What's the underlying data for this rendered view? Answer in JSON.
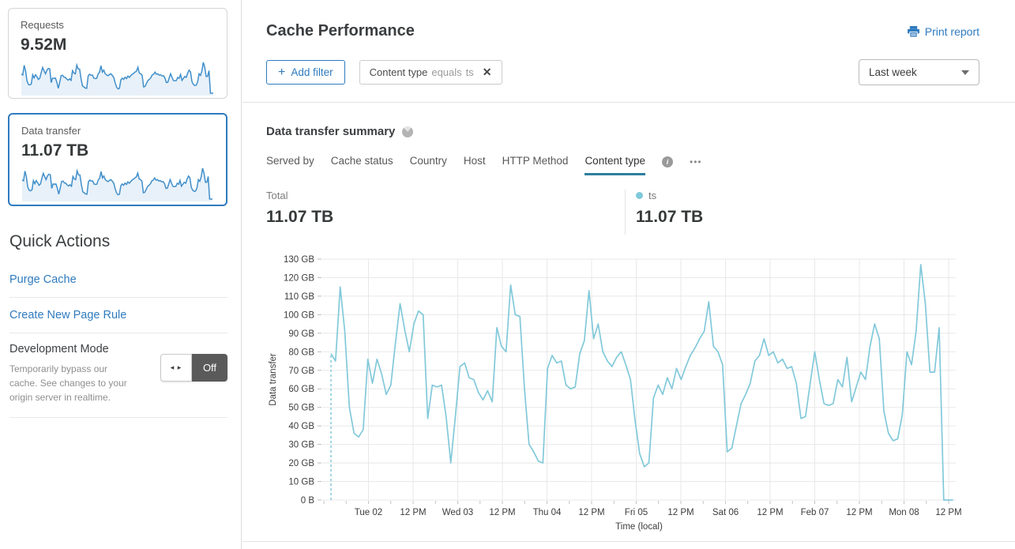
{
  "header": {
    "title": "Cache Performance",
    "print_report": "Print report"
  },
  "filters": {
    "add_filter": "Add filter",
    "plus_icon": "+",
    "chip": {
      "field": "Content type",
      "operator": "equals",
      "value": "ts"
    },
    "time_range": "Last week"
  },
  "sidebar": {
    "requests_card": {
      "label": "Requests",
      "value": "9.52M"
    },
    "data_transfer_card": {
      "label": "Data transfer",
      "value": "11.07 TB"
    },
    "quick_actions_title": "Quick Actions",
    "links": [
      {
        "label": "Purge Cache"
      },
      {
        "label": "Create New Page Rule"
      }
    ],
    "development_mode": {
      "title": "Development Mode",
      "description": "Temporarily bypass our cache. See changes to your origin server in realtime.",
      "toggle_label": "Off"
    }
  },
  "summary": {
    "title": "Data transfer summary",
    "tabs": [
      {
        "label": "Served by"
      },
      {
        "label": "Cache status"
      },
      {
        "label": "Country"
      },
      {
        "label": "Host"
      },
      {
        "label": "HTTP Method"
      },
      {
        "label": "Content type",
        "active": true
      }
    ],
    "total_label": "Total",
    "total_value": "11.07 TB",
    "legend": {
      "name": "ts",
      "value": "11.07 TB"
    }
  },
  "icons": {
    "more": "•••",
    "info": "i",
    "close": "✕",
    "toggle_arrows": "◂ ▸"
  },
  "colors": {
    "accent_blue": "#2f7bbf",
    "chart_line": "#82c9da",
    "legend_dot": "#7fc9db",
    "tab_underline": "#2d7f9d",
    "sparkline": "#418fca",
    "sparkline_fill": "#e8f1f9",
    "grid": "#e8e8e8"
  },
  "chart_data": {
    "type": "line",
    "title": "Data transfer summary",
    "xlabel": "Time (local)",
    "ylabel": "Data transfer",
    "unit": "GB",
    "ylim": [
      0,
      130
    ],
    "grid": true,
    "leading_dashed_drop": true,
    "x_ticks": [
      "Tue 02",
      "12 PM",
      "Wed 03",
      "12 PM",
      "Thu 04",
      "12 PM",
      "Fri 05",
      "12 PM",
      "Sat 06",
      "12 PM",
      "Feb 07",
      "12 PM",
      "Mon 08",
      "12 PM"
    ],
    "y_ticks": [
      "0 B",
      "10 GB",
      "20 GB",
      "30 GB",
      "40 GB",
      "50 GB",
      "60 GB",
      "70 GB",
      "80 GB",
      "90 GB",
      "100 GB",
      "110 GB",
      "120 GB",
      "130 GB"
    ],
    "series": [
      {
        "name": "ts",
        "total": "11.07 TB",
        "color": "#82c9da",
        "values": [
          79,
          75,
          115,
          91,
          50,
          36,
          34,
          38,
          76,
          63,
          76,
          68,
          57,
          62,
          85,
          106,
          92,
          80,
          95,
          102,
          100,
          44,
          62,
          61,
          62,
          45,
          20,
          45,
          72,
          74,
          66,
          65,
          58,
          54,
          59,
          53,
          93,
          83,
          80,
          116,
          100,
          99,
          60,
          30,
          26,
          21,
          20,
          71,
          78,
          74,
          75,
          62,
          60,
          61,
          79,
          86,
          113,
          87,
          95,
          80,
          75,
          72,
          77,
          80,
          73,
          65,
          43,
          25,
          18,
          20,
          55,
          62,
          57,
          66,
          60,
          71,
          65,
          72,
          78,
          82,
          87,
          91,
          107,
          83,
          80,
          73,
          26,
          28,
          40,
          52,
          57,
          63,
          75,
          78,
          87,
          78,
          80,
          74,
          76,
          71,
          72,
          63,
          44,
          45,
          63,
          80,
          65,
          52,
          51,
          52,
          65,
          61,
          77,
          53,
          61,
          69,
          65,
          83,
          95,
          87,
          48,
          36,
          32,
          33,
          46,
          80,
          73,
          91,
          127,
          106,
          69,
          69,
          93,
          0,
          0,
          0
        ]
      }
    ]
  }
}
